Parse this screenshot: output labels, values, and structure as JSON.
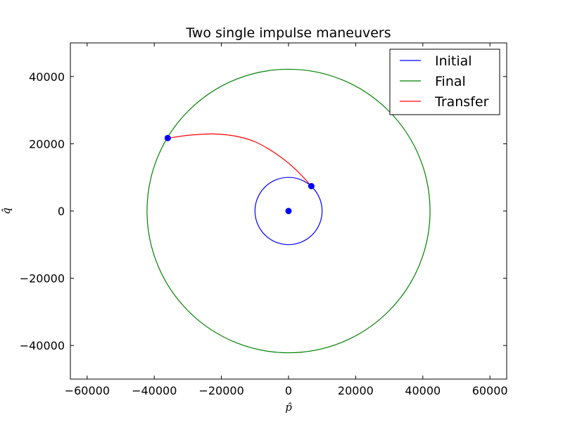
{
  "chart_data": {
    "type": "line",
    "title": "Two single impulse maneuvers",
    "xlabel": "p̂",
    "ylabel": "q̂",
    "xlim": [
      -65000,
      65000
    ],
    "ylim": [
      -50000,
      50000
    ],
    "xticks": [
      -60000,
      -40000,
      -20000,
      0,
      20000,
      40000,
      60000
    ],
    "yticks": [
      -40000,
      -20000,
      0,
      20000,
      40000
    ],
    "xtick_labels": [
      "−60000",
      "−40000",
      "−20000",
      "0",
      "20000",
      "40000",
      "60000"
    ],
    "ytick_labels": [
      "−40000",
      "−20000",
      "0",
      "20000",
      "40000"
    ],
    "grid": false,
    "legend_position": "top-right",
    "series": [
      {
        "name": "Initial",
        "color": "#0000ff",
        "shape": "circle",
        "center": [
          0,
          0
        ],
        "radius": 10000
      },
      {
        "name": "Final",
        "color": "#008000",
        "shape": "circle",
        "center": [
          0,
          0
        ],
        "radius": 42164
      },
      {
        "name": "Transfer",
        "color": "#ff0000",
        "shape": "arc",
        "x": [
          6800,
          2000,
          -4000,
          -10000,
          -16000,
          -22000,
          -26000,
          -30000,
          -33000,
          -36000
        ],
        "y": [
          7400,
          12500,
          17200,
          20600,
          22300,
          22900,
          22800,
          22500,
          22100,
          21700
        ]
      }
    ],
    "points": [
      {
        "x": 0,
        "y": 0,
        "color": "#0000ff"
      },
      {
        "x": 6800,
        "y": 7400,
        "color": "#0000ff"
      },
      {
        "x": -36000,
        "y": 21700,
        "color": "#0000ff"
      }
    ]
  }
}
